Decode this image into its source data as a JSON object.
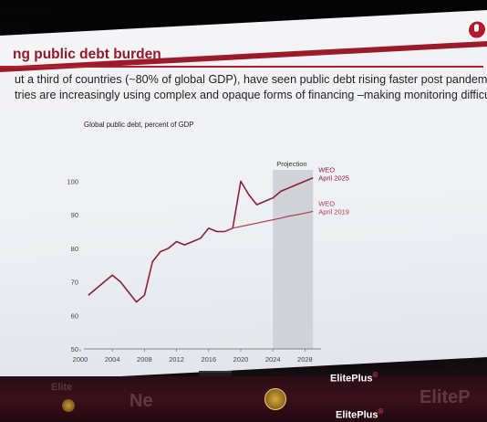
{
  "slide": {
    "title": "ng public debt burden",
    "bullet1": "ut a third of countries (~80% of global GDP), have seen public debt rising faster post pandemic",
    "bullet2": "tries are increasingly using complex and opaque forms of financing –making monitoring difficult"
  },
  "chart_data": {
    "type": "line",
    "title": "Global public debt, percent of GDP",
    "xlabel": "",
    "ylabel": "",
    "ylim": [
      50,
      105
    ],
    "xlim": [
      2000,
      2030
    ],
    "x_ticks": [
      "2000",
      "2004",
      "2008",
      "2012",
      "2016",
      "2020",
      "2024",
      "2028"
    ],
    "y_ticks": [
      "50",
      "60",
      "70",
      "80",
      "90",
      "100"
    ],
    "projection_label": "Projection",
    "projection_range": [
      2024,
      2029
    ],
    "series": [
      {
        "name": "WEO April 2025",
        "color": "#8c1f2e",
        "x": [
          2001,
          2002,
          2003,
          2004,
          2005,
          2006,
          2007,
          2008,
          2009,
          2010,
          2011,
          2012,
          2013,
          2014,
          2015,
          2016,
          2017,
          2018,
          2019,
          2020,
          2021,
          2022,
          2023,
          2024,
          2025,
          2026,
          2027,
          2028,
          2029
        ],
        "y": [
          66,
          68,
          70,
          72,
          70,
          67,
          64,
          66,
          76,
          79,
          80,
          82,
          81,
          82,
          83,
          86,
          85,
          85,
          86,
          100,
          96,
          93,
          94,
          95,
          97,
          98,
          99,
          100,
          101
        ]
      },
      {
        "name": "WEO April 2019",
        "color": "#b43a48",
        "x": [
          2018,
          2019,
          2020,
          2021,
          2022,
          2023,
          2024,
          2025,
          2026,
          2027,
          2028,
          2029
        ],
        "y": [
          85,
          86,
          86.5,
          87,
          87.5,
          88,
          88.5,
          89,
          89.6,
          90,
          90.5,
          91
        ]
      }
    ]
  },
  "footer": {
    "brand1": "ElitePlus",
    "brand1_sup": "®",
    "brand2": "ElitePlus",
    "brand2_sup": "®",
    "faint_left": "Elite",
    "faint_right": "EliteP",
    "faint_mid": "Ne"
  },
  "colors": {
    "accent": "#9b1b2b",
    "background": "#0b0b0d"
  }
}
